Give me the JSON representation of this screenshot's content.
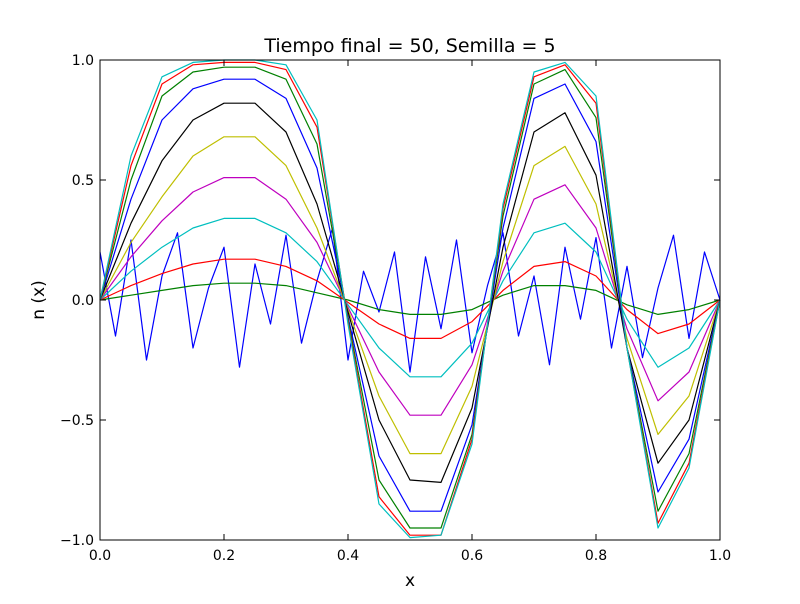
{
  "chart_data": {
    "type": "line",
    "title": "Tiempo final = 50, Semilla = 5",
    "xlabel": "x",
    "ylabel": "n (x)",
    "xlim": [
      0,
      1
    ],
    "ylim": [
      -1,
      1
    ],
    "xticks": [
      {
        "value": 0,
        "label": "0.0"
      },
      {
        "value": 0.2,
        "label": "0.2"
      },
      {
        "value": 0.4,
        "label": "0.4"
      },
      {
        "value": 0.6,
        "label": "0.6"
      },
      {
        "value": 0.8,
        "label": "0.8"
      },
      {
        "value": 1,
        "label": "1.0"
      }
    ],
    "yticks": [
      {
        "value": -1,
        "label": "−1.0"
      },
      {
        "value": -0.5,
        "label": "−0.5"
      },
      {
        "value": 0,
        "label": "0.0"
      },
      {
        "value": 0.5,
        "label": "0.5"
      },
      {
        "value": 1,
        "label": "1.0"
      }
    ],
    "x": [
      0,
      0.05,
      0.1,
      0.15,
      0.2,
      0.25,
      0.3,
      0.35,
      0.4,
      0.45,
      0.5,
      0.55,
      0.6,
      0.65,
      0.7,
      0.75,
      0.8,
      0.85,
      0.9,
      0.95,
      1
    ],
    "series": [
      {
        "color": "#0000ff",
        "x": [
          0,
          0.025,
          0.05,
          0.075,
          0.1,
          0.125,
          0.15,
          0.175,
          0.2,
          0.225,
          0.25,
          0.275,
          0.3,
          0.325,
          0.35,
          0.375,
          0.4,
          0.425,
          0.45,
          0.475,
          0.5,
          0.525,
          0.55,
          0.575,
          0.6,
          0.625,
          0.65,
          0.675,
          0.7,
          0.725,
          0.75,
          0.775,
          0.8,
          0.825,
          0.85,
          0.875,
          0.9,
          0.925,
          0.95,
          0.975,
          1
        ],
        "values": [
          0.2,
          -0.15,
          0.25,
          -0.25,
          0.1,
          0.28,
          -0.2,
          0.05,
          0.22,
          -0.28,
          0.15,
          -0.1,
          0.27,
          -0.18,
          0.08,
          0.3,
          -0.25,
          0.12,
          -0.05,
          0.2,
          -0.3,
          0.18,
          -0.12,
          0.25,
          -0.22,
          0.06,
          0.28,
          -0.15,
          0.1,
          -0.27,
          0.22,
          -0.08,
          0.26,
          -0.2,
          0.14,
          -0.24,
          0.05,
          0.27,
          -0.16,
          0.2,
          0
        ]
      },
      {
        "color": "#008000",
        "values": [
          0,
          0.02,
          0.04,
          0.06,
          0.07,
          0.07,
          0.06,
          0.03,
          0,
          -0.04,
          -0.06,
          -0.06,
          -0.04,
          0.02,
          0.06,
          0.06,
          0.04,
          -0.02,
          -0.06,
          -0.04,
          0
        ]
      },
      {
        "color": "#ff0000",
        "values": [
          0,
          0.06,
          0.11,
          0.15,
          0.17,
          0.17,
          0.14,
          0.08,
          -0.01,
          -0.1,
          -0.16,
          -0.16,
          -0.09,
          0.04,
          0.14,
          0.16,
          0.1,
          -0.04,
          -0.14,
          -0.1,
          0
        ]
      },
      {
        "color": "#00bfbf",
        "values": [
          0,
          0.12,
          0.22,
          0.3,
          0.34,
          0.34,
          0.28,
          0.16,
          -0.02,
          -0.2,
          -0.32,
          -0.32,
          -0.18,
          0.08,
          0.28,
          0.32,
          0.2,
          -0.08,
          -0.28,
          -0.2,
          0
        ]
      },
      {
        "color": "#bf00bf",
        "values": [
          0,
          0.18,
          0.33,
          0.45,
          0.51,
          0.51,
          0.42,
          0.24,
          -0.03,
          -0.3,
          -0.48,
          -0.48,
          -0.27,
          0.12,
          0.42,
          0.48,
          0.3,
          -0.12,
          -0.42,
          -0.3,
          0
        ]
      },
      {
        "color": "#bfbf00",
        "values": [
          0,
          0.24,
          0.43,
          0.6,
          0.68,
          0.68,
          0.56,
          0.3,
          -0.04,
          -0.4,
          -0.64,
          -0.64,
          -0.36,
          0.16,
          0.56,
          0.64,
          0.4,
          -0.16,
          -0.56,
          -0.4,
          0
        ]
      },
      {
        "color": "#000000",
        "values": [
          0,
          0.32,
          0.58,
          0.75,
          0.82,
          0.82,
          0.7,
          0.4,
          -0.05,
          -0.5,
          -0.75,
          -0.76,
          -0.45,
          0.22,
          0.7,
          0.78,
          0.52,
          -0.2,
          -0.68,
          -0.5,
          0
        ]
      },
      {
        "color": "#0000ff",
        "values": [
          0,
          0.42,
          0.75,
          0.88,
          0.92,
          0.92,
          0.84,
          0.55,
          -0.07,
          -0.65,
          -0.88,
          -0.88,
          -0.52,
          0.3,
          0.84,
          0.9,
          0.66,
          -0.2,
          -0.8,
          -0.58,
          0
        ]
      },
      {
        "color": "#008000",
        "values": [
          0,
          0.5,
          0.85,
          0.95,
          0.97,
          0.97,
          0.92,
          0.65,
          -0.08,
          -0.75,
          -0.95,
          -0.95,
          -0.56,
          0.35,
          0.9,
          0.96,
          0.76,
          -0.2,
          -0.88,
          -0.64,
          0
        ]
      },
      {
        "color": "#ff0000",
        "values": [
          0,
          0.56,
          0.9,
          0.98,
          0.99,
          0.99,
          0.96,
          0.72,
          -0.09,
          -0.82,
          -0.98,
          -0.98,
          -0.58,
          0.38,
          0.93,
          0.98,
          0.82,
          -0.2,
          -0.93,
          -0.68,
          0
        ]
      },
      {
        "color": "#00bfbf",
        "values": [
          0,
          0.6,
          0.93,
          0.99,
          1,
          1,
          0.98,
          0.75,
          -0.1,
          -0.85,
          -0.99,
          -0.98,
          -0.6,
          0.4,
          0.95,
          0.99,
          0.85,
          -0.2,
          -0.95,
          -0.7,
          0
        ]
      }
    ]
  }
}
